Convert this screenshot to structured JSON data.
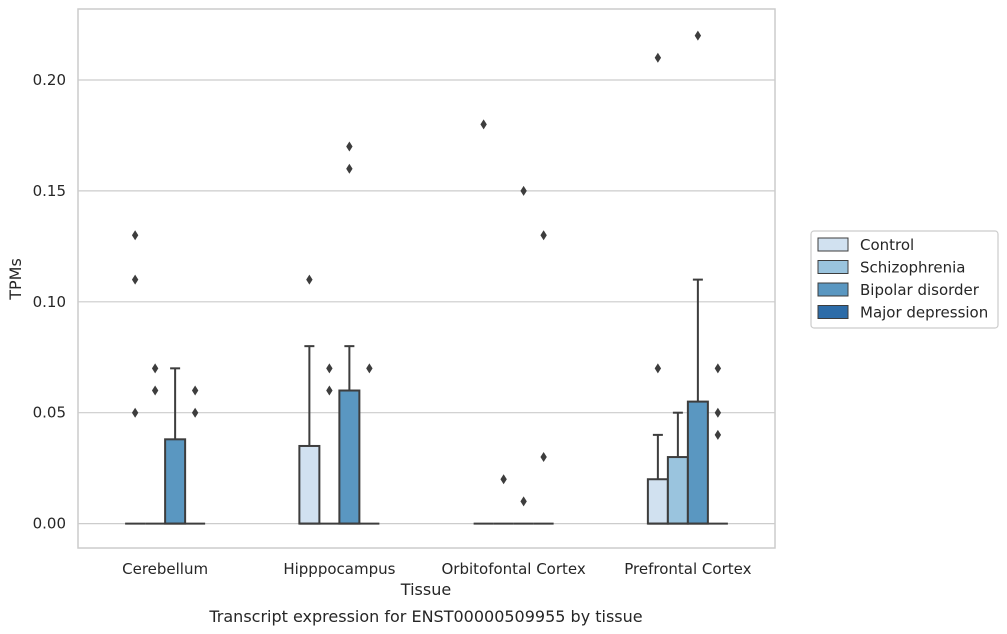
{
  "chart_data": {
    "type": "box",
    "xlabel": "Tissue",
    "ylabel": "TPMs",
    "caption": "Transcript expression for ENST00000509955 by tissue",
    "ylim": [
      -0.011,
      0.232
    ],
    "yticks": [
      0.0,
      0.05,
      0.1,
      0.15,
      0.2
    ],
    "ytick_labels": [
      "0.00",
      "0.05",
      "0.10",
      "0.15",
      "0.20"
    ],
    "grid": "horizontal",
    "legend_position": "right",
    "categories": [
      "Cerebellum",
      "Hipppocampus",
      "Orbitofontal Cortex",
      "Prefrontal Cortex"
    ],
    "series": [
      {
        "name": "Control",
        "color": "#d1e1f0",
        "boxes": [
          {
            "q1": 0,
            "median": 0,
            "q3": 0,
            "whisker_low": 0,
            "whisker_high": 0,
            "outliers": [
              0.05,
              0.11,
              0.13
            ]
          },
          {
            "q1": 0,
            "median": 0,
            "q3": 0.035,
            "whisker_low": 0,
            "whisker_high": 0.08,
            "outliers": [
              0.11
            ]
          },
          {
            "q1": 0,
            "median": 0,
            "q3": 0,
            "whisker_low": 0,
            "whisker_high": 0,
            "outliers": [
              0.18
            ]
          },
          {
            "q1": 0,
            "median": 0,
            "q3": 0.02,
            "whisker_low": 0,
            "whisker_high": 0.04,
            "outliers": [
              0.07,
              0.21
            ]
          }
        ]
      },
      {
        "name": "Schizophrenia",
        "color": "#9ac4de",
        "boxes": [
          {
            "q1": 0,
            "median": 0,
            "q3": 0,
            "whisker_low": 0,
            "whisker_high": 0,
            "outliers": [
              0.06,
              0.07
            ]
          },
          {
            "q1": 0,
            "median": 0,
            "q3": 0,
            "whisker_low": 0,
            "whisker_high": 0,
            "outliers": [
              0.06,
              0.07
            ]
          },
          {
            "q1": 0,
            "median": 0,
            "q3": 0,
            "whisker_low": 0,
            "whisker_high": 0,
            "outliers": [
              0.02
            ]
          },
          {
            "q1": 0,
            "median": 0,
            "q3": 0.03,
            "whisker_low": 0,
            "whisker_high": 0.05,
            "outliers": []
          }
        ]
      },
      {
        "name": "Bipolar disorder",
        "color": "#5a97c1",
        "boxes": [
          {
            "q1": 0,
            "median": 0,
            "q3": 0.038,
            "whisker_low": 0,
            "whisker_high": 0.07,
            "outliers": []
          },
          {
            "q1": 0,
            "median": 0,
            "q3": 0.06,
            "whisker_low": 0,
            "whisker_high": 0.08,
            "outliers": [
              0.16,
              0.17
            ]
          },
          {
            "q1": 0,
            "median": 0,
            "q3": 0,
            "whisker_low": 0,
            "whisker_high": 0,
            "outliers": [
              0.01,
              0.15
            ]
          },
          {
            "q1": 0,
            "median": 0,
            "q3": 0.055,
            "whisker_low": 0,
            "whisker_high": 0.11,
            "outliers": [
              0.22
            ]
          }
        ]
      },
      {
        "name": "Major depression",
        "color": "#2d6ca8",
        "boxes": [
          {
            "q1": 0,
            "median": 0,
            "q3": 0,
            "whisker_low": 0,
            "whisker_high": 0,
            "outliers": [
              0.05,
              0.06
            ]
          },
          {
            "q1": 0,
            "median": 0,
            "q3": 0,
            "whisker_low": 0,
            "whisker_high": 0,
            "outliers": [
              0.07
            ]
          },
          {
            "q1": 0,
            "median": 0,
            "q3": 0,
            "whisker_low": 0,
            "whisker_high": 0,
            "outliers": [
              0.03,
              0.13
            ]
          },
          {
            "q1": 0,
            "median": 0,
            "q3": 0,
            "whisker_low": 0,
            "whisker_high": 0,
            "outliers": [
              0.04,
              0.05,
              0.07
            ]
          }
        ]
      }
    ]
  }
}
